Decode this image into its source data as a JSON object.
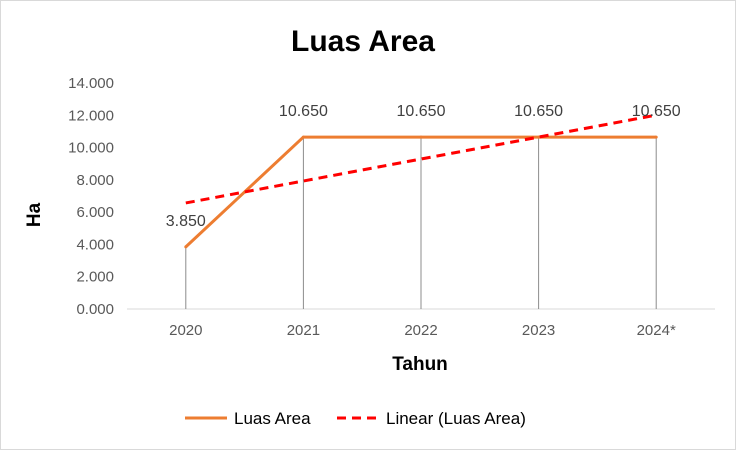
{
  "chart_data": {
    "type": "line",
    "title": "Luas Area",
    "xlabel": "Tahun",
    "ylabel": "Ha",
    "categories": [
      "2020",
      "2021",
      "2022",
      "2023",
      "2024*"
    ],
    "ylim": [
      0,
      14000
    ],
    "yticks": [
      0,
      2000,
      4000,
      6000,
      8000,
      10000,
      12000,
      14000
    ],
    "ytick_labels": [
      "0.000",
      "2.000",
      "4.000",
      "6.000",
      "8.000",
      "10.000",
      "12.000",
      "14.000"
    ],
    "grid": false,
    "drop_lines": true,
    "legend_position": "bottom",
    "series": [
      {
        "name": "Luas Area",
        "values": [
          3850,
          10650,
          10650,
          10650,
          10650
        ],
        "data_labels": [
          "3.850",
          "10.650",
          "10.650",
          "10.650",
          "10.650"
        ],
        "color": "#ED7D31",
        "style": "solid"
      }
    ],
    "trendline": {
      "name": "Linear (Luas Area)",
      "type": "linear",
      "of_series": "Luas Area",
      "color": "#FF0000",
      "style": "dashed"
    }
  }
}
